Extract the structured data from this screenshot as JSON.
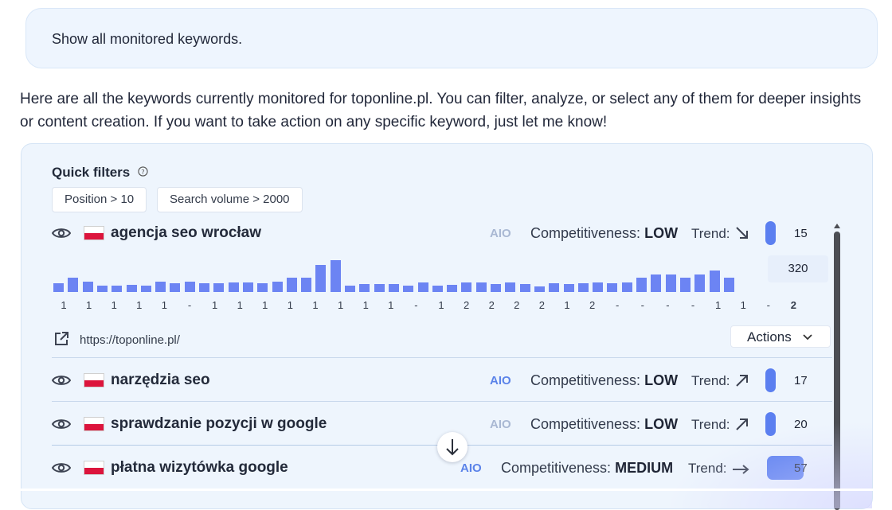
{
  "user_message": "Show all monitored keywords.",
  "assistant_reply": "Here are all the keywords currently monitored for toponline.pl. You can filter, analyze, or select any of them for deeper insights or content creation. If you want to take action on any specific keyword, just let me know!",
  "quick_filters": {
    "title": "Quick filters",
    "chips": [
      "Position > 10",
      "Search volume > 2000"
    ]
  },
  "competitiveness_label": "Competitiveness:",
  "trend_label": "Trend:",
  "aio_label": "AIO",
  "keywords": [
    {
      "keyword": "agencja seo wrocław",
      "aio_active": false,
      "competitiveness": "LOW",
      "trend": "down",
      "position": "15",
      "volume": "320",
      "url": "https://toponline.pl/",
      "actions_label": "Actions",
      "history_bars": [
        0.25,
        0.44,
        0.3,
        0.18,
        0.2,
        0.22,
        0.2,
        0.3,
        0.26,
        0.3,
        0.26,
        0.26,
        0.28,
        0.28,
        0.26,
        0.3,
        0.44,
        0.44,
        0.8,
        0.96,
        0.18,
        0.24,
        0.24,
        0.24,
        0.2,
        0.28,
        0.18,
        0.22,
        0.28,
        0.28,
        0.24,
        0.28,
        0.24,
        0.16,
        0.26,
        0.24,
        0.26,
        0.28,
        0.26,
        0.28,
        0.42,
        0.52,
        0.52,
        0.44,
        0.52,
        0.64,
        0.44
      ],
      "history_positions": [
        "1",
        "1",
        "1",
        "1",
        "1",
        "-",
        "1",
        "1",
        "1",
        "1",
        "1",
        "1",
        "1",
        "1",
        "-",
        "1",
        "2",
        "2",
        "2",
        "2",
        "1",
        "2",
        "-",
        "-",
        "-",
        "-",
        "1",
        "1",
        "-",
        "2"
      ]
    },
    {
      "keyword": "narzędzia seo",
      "aio_active": true,
      "competitiveness": "LOW",
      "trend": "up",
      "position": "17"
    },
    {
      "keyword": "sprawdzanie pozycji w google",
      "aio_active": false,
      "competitiveness": "LOW",
      "trend": "up",
      "position": "20"
    },
    {
      "keyword": "płatna wizytówka google",
      "aio_active": true,
      "competitiveness": "MEDIUM",
      "trend": "flat",
      "position": "57"
    }
  ],
  "colors": {
    "accent": "#5b7ff0",
    "bar": "#6c84f3",
    "aio_active": "#5b83e9",
    "aio_inactive": "#a9b8d3",
    "flag_red": "#dc143c"
  }
}
